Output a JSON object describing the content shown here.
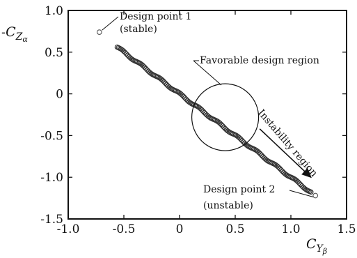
{
  "chart_data": {
    "type": "scatter",
    "xlim": [
      -1.0,
      1.5
    ],
    "ylim": [
      -1.5,
      1.0
    ],
    "x_ticks": [
      "-1.0",
      "-0.5",
      "0",
      "0.5",
      "1.0",
      "1.5"
    ],
    "y_ticks": [
      "1.0",
      "0.5",
      "0",
      "-0.5",
      "-1.0",
      "-1.5"
    ],
    "xlabel": {
      "main": "C",
      "sub": "Y",
      "subsub": "β"
    },
    "ylabel": {
      "prefix": "-",
      "main": "C",
      "sub": "Z",
      "subsub": "α"
    },
    "grid": false,
    "series": [
      {
        "marker": "open-circle",
        "line": {
          "x_start": -0.56,
          "y_start": 0.56,
          "x_end": 1.18,
          "y_end": -1.18,
          "count": 150
        },
        "points": [
          {
            "x": -0.72,
            "y": 0.74
          },
          {
            "x": 1.22,
            "y": -1.22
          }
        ]
      }
    ],
    "annotations": [
      {
        "text": "Design point 1",
        "line2": "(stable)",
        "x": -0.72,
        "y": 0.74
      },
      {
        "text": "Design point 2",
        "line2": "(unstable)",
        "x": 1.22,
        "y": -1.22
      },
      {
        "text": "Favorable design region",
        "circle": {
          "cx": 0.41,
          "cy": -0.28,
          "r": 0.3
        }
      },
      {
        "text": "Instability region",
        "arrow": {
          "x1": 0.72,
          "y1": -0.42,
          "x2": 1.18,
          "y2": -1.0
        }
      }
    ],
    "colors": {
      "marker": "#333333",
      "axes": "#111111"
    }
  }
}
